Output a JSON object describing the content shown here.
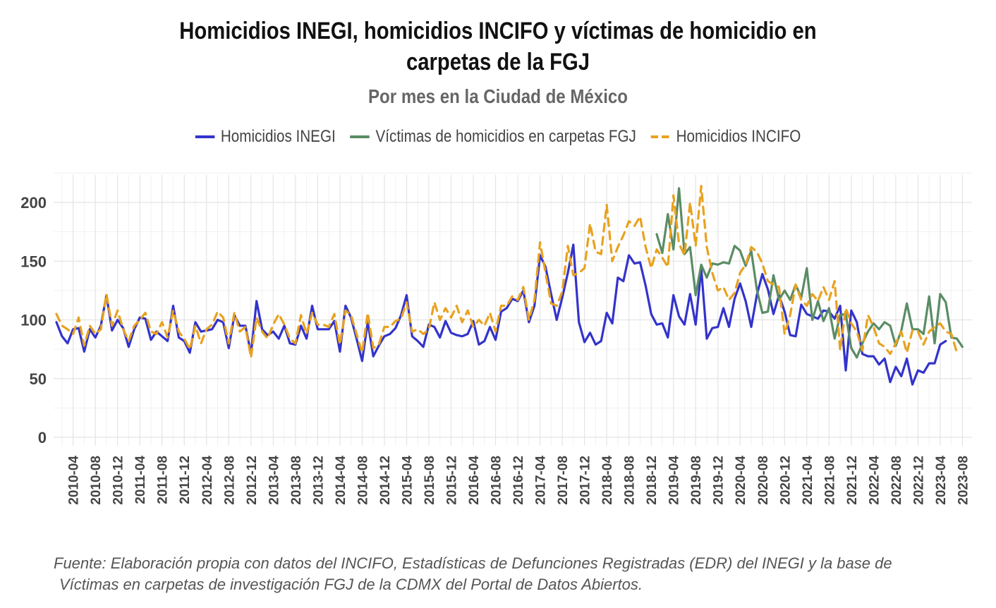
{
  "chart_data": {
    "type": "line",
    "title": "Homicidios INEGI, homicidios INCIFO y víctimas de homicidio en carpetas de la FGJ",
    "title_line1": "Homicidios INEGI, homicidios INCIFO y víctimas de homicidio en",
    "title_line2": "carpetas de la FGJ",
    "subtitle": "Por mes en la Ciudad de México",
    "xlabel": "",
    "ylabel": "",
    "ylim": [
      0,
      220
    ],
    "yticks": [
      0,
      50,
      100,
      150,
      200
    ],
    "x_start": "2010-01",
    "x_end": "2023-08",
    "x_ticks": [
      "2010-04",
      "2010-08",
      "2010-12",
      "2011-04",
      "2011-08",
      "2011-12",
      "2012-04",
      "2012-08",
      "2012-12",
      "2013-04",
      "2013-08",
      "2013-12",
      "2014-04",
      "2014-08",
      "2014-12",
      "2015-04",
      "2015-08",
      "2015-12",
      "2016-04",
      "2016-08",
      "2016-12",
      "2017-04",
      "2017-08",
      "2017-12",
      "2018-04",
      "2018-08",
      "2018-12",
      "2019-04",
      "2019-08",
      "2019-12",
      "2020-04",
      "2020-08",
      "2020-12",
      "2021-04",
      "2021-08",
      "2021-12",
      "2022-04",
      "2022-08",
      "2022-12",
      "2023-04",
      "2023-08"
    ],
    "legend_position": "top",
    "series": [
      {
        "name": "Homicidios INEGI",
        "color": "#3333cc",
        "style": "solid",
        "start": "2010-01",
        "values": [
          98,
          86,
          80,
          92,
          93,
          73,
          92,
          85,
          95,
          121,
          91,
          100,
          93,
          77,
          92,
          102,
          101,
          83,
          90,
          86,
          82,
          112,
          85,
          82,
          72,
          98,
          90,
          91,
          92,
          100,
          98,
          76,
          104,
          95,
          95,
          71,
          116,
          92,
          87,
          90,
          84,
          95,
          80,
          79,
          95,
          84,
          112,
          92,
          92,
          92,
          99,
          73,
          112,
          102,
          84,
          65,
          98,
          69,
          78,
          86,
          88,
          93,
          104,
          121,
          86,
          82,
          77,
          96,
          94,
          85,
          99,
          89,
          87,
          86,
          88,
          99,
          79,
          82,
          94,
          83,
          107,
          110,
          118,
          116,
          125,
          98,
          112,
          155,
          145,
          122,
          100,
          119,
          140,
          164,
          98,
          81,
          89,
          79,
          82,
          106,
          97,
          136,
          133,
          155,
          148,
          149,
          129,
          105,
          96,
          97,
          85,
          121,
          103,
          96,
          122,
          96,
          144,
          84,
          93,
          94,
          110,
          94,
          118,
          131,
          116,
          94,
          121,
          139,
          126,
          105,
          121,
          107,
          87,
          86,
          113,
          105,
          103,
          101,
          108,
          107,
          101,
          112,
          57,
          108,
          98,
          71,
          69,
          69,
          62,
          67,
          47,
          60,
          52,
          67,
          45,
          57,
          55,
          63,
          63,
          79,
          82
        ]
      },
      {
        "name": "Víctimas de homicidios en carpetas FGJ",
        "color": "#5a8c65",
        "style": "solid",
        "start": "2019-01",
        "values": [
          173,
          157,
          190,
          160,
          212,
          156,
          162,
          121,
          147,
          136,
          148,
          147,
          149,
          148,
          163,
          159,
          146,
          159,
          126,
          106,
          107,
          138,
          117,
          125,
          117,
          130,
          119,
          144,
          100,
          116,
          99,
          110,
          84,
          104,
          105,
          76,
          68,
          80,
          90,
          97,
          92,
          98,
          95,
          78,
          91,
          114,
          92,
          92,
          88,
          120,
          80,
          122,
          115,
          85,
          84,
          77
        ]
      },
      {
        "name": "Homicidios INCIFO",
        "color": "#e8a21f",
        "style": "dashed",
        "start": "2010-01",
        "values": [
          105,
          95,
          92,
          88,
          102,
          78,
          95,
          88,
          92,
          122,
          95,
          108,
          92,
          82,
          95,
          100,
          106,
          90,
          88,
          98,
          85,
          108,
          90,
          84,
          75,
          95,
          80,
          92,
          96,
          107,
          102,
          80,
          106,
          90,
          94,
          68,
          102,
          90,
          84,
          96,
          105,
          96,
          84,
          80,
          104,
          88,
          106,
          96,
          96,
          94,
          105,
          79,
          108,
          104,
          88,
          72,
          106,
          76,
          79,
          94,
          94,
          99,
          101,
          115,
          90,
          92,
          88,
          92,
          115,
          100,
          110,
          102,
          112,
          98,
          108,
          94,
          100,
          95,
          106,
          90,
          112,
          112,
          120,
          117,
          128,
          100,
          117,
          166,
          140,
          114,
          112,
          124,
          163,
          138,
          140,
          144,
          182,
          158,
          156,
          198,
          150,
          162,
          172,
          184,
          180,
          188,
          162,
          144,
          160,
          153,
          145,
          206,
          165,
          155,
          200,
          163,
          214,
          162,
          140,
          125,
          128,
          117,
          123,
          140,
          147,
          162,
          158,
          148,
          133,
          130,
          128,
          88,
          104,
          130,
          117,
          112,
          122,
          116,
          128,
          117,
          133,
          74,
          110,
          97,
          90,
          74,
          104,
          94,
          80,
          77,
          71,
          80,
          90,
          72,
          91,
          90,
          79,
          90,
          94,
          97,
          90,
          88,
          72
        ]
      }
    ],
    "source_line1": "Fuente: Elaboración propia con datos del INCIFO, Estadísticas de Defunciones Registradas (EDR) del INEGI y la base de",
    "source_line2": "Víctimas en carpetas de investigación FGJ de la CDMX del Portal de Datos Abiertos."
  }
}
